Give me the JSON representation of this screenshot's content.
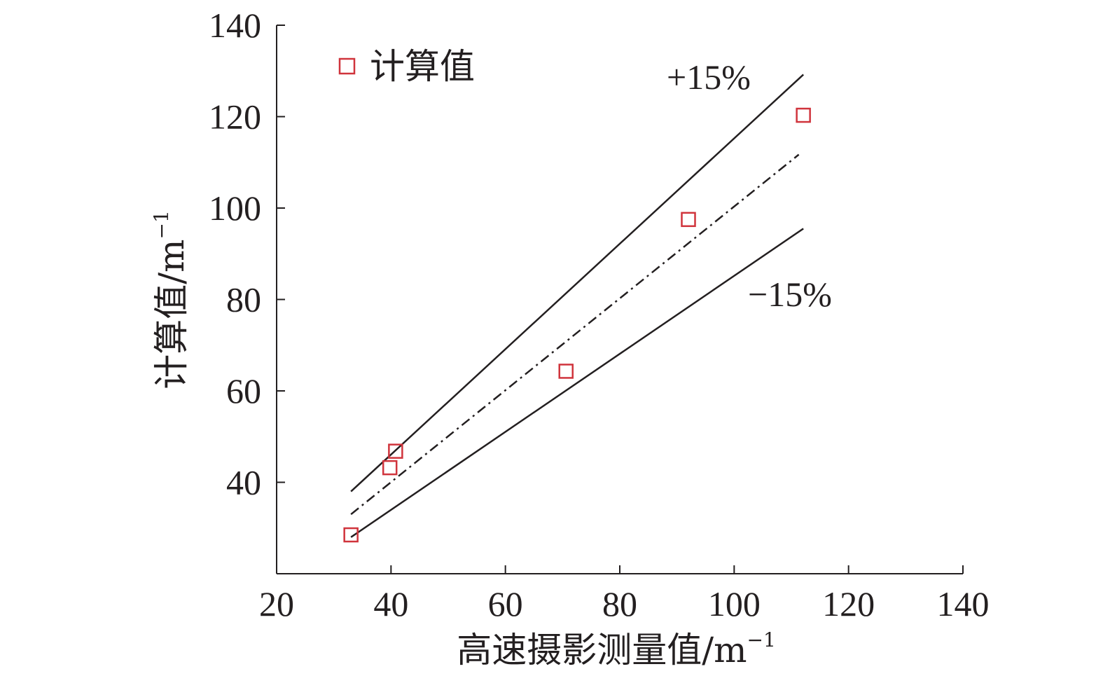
{
  "chart_data": {
    "type": "scatter",
    "xlabel": "高速摄影测量值/m",
    "xlabel_sup": "−1",
    "ylabel": "计算值/m",
    "ylabel_sup": "−1",
    "xlim": [
      20,
      140
    ],
    "ylim": [
      20,
      140
    ],
    "x_ticks": [
      20,
      40,
      60,
      80,
      100,
      120,
      140
    ],
    "y_ticks": [
      40,
      60,
      80,
      100,
      120,
      140
    ],
    "grid": false,
    "legend": {
      "placement": "top-left",
      "entries": [
        "计算值"
      ]
    },
    "series": [
      {
        "name": "计算值",
        "marker": "open-square",
        "color": "#d0343c",
        "points": [
          {
            "x": 33.0,
            "y": 28.5
          },
          {
            "x": 39.8,
            "y": 43.2
          },
          {
            "x": 40.8,
            "y": 46.8
          },
          {
            "x": 70.6,
            "y": 64.3
          },
          {
            "x": 92.0,
            "y": 97.5
          },
          {
            "x": 112.1,
            "y": 120.3
          }
        ]
      }
    ],
    "reference_lines": [
      {
        "label": "+15%",
        "style": "solid",
        "x": [
          33,
          112.1
        ],
        "y": [
          38,
          129.2
        ]
      },
      {
        "label": "",
        "style": "dash-dot",
        "x": [
          33,
          111.3
        ],
        "y": [
          33,
          111.7
        ]
      },
      {
        "label": "−15%",
        "style": "solid",
        "x": [
          33,
          112.1
        ],
        "y": [
          28,
          95.5
        ]
      }
    ],
    "annotations": [
      "+15%",
      "−15%"
    ],
    "line_color": "#231f20"
  }
}
